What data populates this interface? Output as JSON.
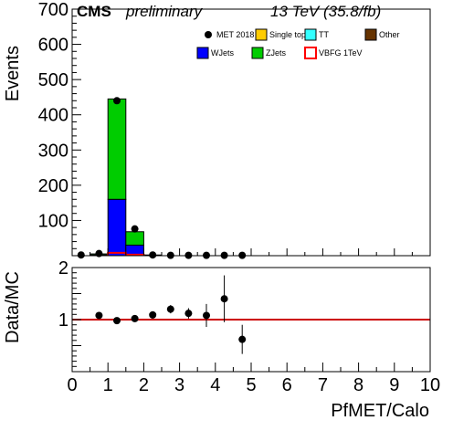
{
  "header": {
    "experiment": "CMS",
    "status": "preliminary",
    "lumi": "13 TeV (35.8/fb)"
  },
  "chart_data": [
    {
      "type": "bar",
      "stacked": true,
      "ylabel": "Events",
      "ylim": [
        0,
        700
      ],
      "y_ticks": [
        100,
        200,
        300,
        400,
        500,
        600,
        700
      ],
      "xlim": [
        0,
        10
      ],
      "bin_edges": [
        0,
        0.5,
        1,
        1.5,
        2,
        2.5,
        3,
        3.5,
        4,
        4.5,
        5,
        5.5,
        6,
        6.5,
        7,
        7.5,
        8,
        8.5,
        9,
        9.5,
        10
      ],
      "legend": [
        {
          "label": "MET 2018",
          "kind": "marker",
          "color": "#000000"
        },
        {
          "label": "Single top",
          "kind": "box",
          "color": "#ffcc00"
        },
        {
          "label": "TT",
          "kind": "box",
          "color": "#33ffff"
        },
        {
          "label": "Other",
          "kind": "box",
          "color": "#663300"
        },
        {
          "label": "WJets",
          "kind": "box",
          "color": "#0000ff"
        },
        {
          "label": "ZJets",
          "kind": "box",
          "color": "#00cc00"
        },
        {
          "label": "VBFG 1TeV",
          "kind": "outline",
          "color": "#ff0000"
        }
      ],
      "series": [
        {
          "name": "WJets",
          "color": "#0000ff",
          "values": [
            0,
            2,
            160,
            30,
            1,
            0,
            0,
            0,
            0,
            0,
            0,
            0,
            0,
            0,
            0,
            0,
            0,
            0,
            0,
            0
          ]
        },
        {
          "name": "ZJets",
          "color": "#00cc00",
          "values": [
            0,
            3,
            285,
            38,
            1,
            0,
            0,
            0,
            0,
            0,
            0,
            0,
            0,
            0,
            0,
            0,
            0,
            0,
            0,
            0
          ]
        },
        {
          "name": "VBFG 1TeV",
          "color": "#ff0000",
          "style": "outline",
          "values": [
            0,
            0,
            8,
            3,
            0,
            0,
            0,
            0,
            0,
            0,
            0,
            0,
            0,
            0,
            0,
            0,
            0,
            0,
            0,
            0
          ]
        }
      ],
      "data_points": {
        "name": "MET 2018",
        "x": [
          0.25,
          0.75,
          1.25,
          1.75,
          2.25,
          2.75,
          3.25,
          3.75,
          4.25,
          4.75
        ],
        "y": [
          2,
          6,
          440,
          76,
          2,
          1,
          1,
          1,
          1,
          1
        ]
      }
    },
    {
      "type": "scatter",
      "ylabel": "Data/MC",
      "xlabel": "PfMET/Calo",
      "ylim": [
        0,
        2
      ],
      "xlim": [
        0,
        10
      ],
      "y_ticks": [
        0.5,
        1,
        1.5,
        2
      ],
      "y_tick_labels": [
        "",
        "1",
        "",
        "2"
      ],
      "x_ticks": [
        0,
        1,
        2,
        3,
        4,
        5,
        6,
        7,
        8,
        9,
        10
      ],
      "reference_line": {
        "y": 1,
        "color": "#cc0000"
      },
      "points": {
        "x": [
          0.75,
          1.25,
          1.75,
          2.25,
          2.75,
          3.25,
          3.75,
          4.25,
          4.75
        ],
        "y": [
          1.08,
          0.98,
          1.02,
          1.09,
          1.2,
          1.12,
          1.08,
          1.4,
          0.62
        ],
        "err": [
          0.05,
          0.02,
          0.04,
          0.07,
          0.08,
          0.1,
          0.22,
          0.45,
          0.28
        ]
      }
    }
  ]
}
